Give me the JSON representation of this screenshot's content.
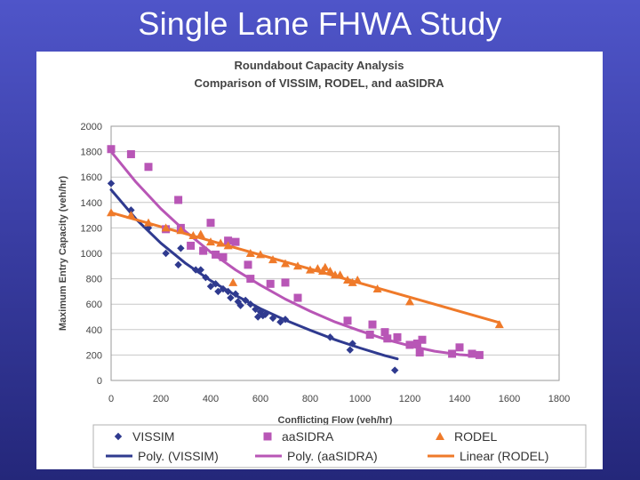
{
  "slide": {
    "title": "Single Lane FHWA Study"
  },
  "chart_data": {
    "type": "scatter",
    "title": "Roundabout Capacity Analysis",
    "subtitle": "Comparison of VISSIM, RODEL, and aaSIDRA",
    "xlabel": "Conflicting Flow (veh/hr)",
    "ylabel": "Maximum Entry Capacity (veh/hr)",
    "xlim": [
      0,
      1800
    ],
    "ylim": [
      0,
      2000
    ],
    "xticks": [
      0,
      200,
      400,
      600,
      800,
      1000,
      1200,
      1400,
      1600,
      1800
    ],
    "yticks": [
      0,
      200,
      400,
      600,
      800,
      1000,
      1200,
      1400,
      1600,
      1800,
      2000
    ],
    "grid": true,
    "legend_position": "bottom",
    "colors": {
      "vissim": "#2f3a8f",
      "aasidra": "#b856b6",
      "rodel": "#ef7a2a"
    },
    "series": [
      {
        "name": "VISSIM",
        "marker": "diamond",
        "color": "#2f3a8f",
        "points": [
          [
            0,
            1550
          ],
          [
            80,
            1340
          ],
          [
            150,
            1200
          ],
          [
            220,
            1000
          ],
          [
            270,
            910
          ],
          [
            280,
            1040
          ],
          [
            340,
            870
          ],
          [
            360,
            870
          ],
          [
            380,
            810
          ],
          [
            400,
            740
          ],
          [
            420,
            760
          ],
          [
            430,
            700
          ],
          [
            450,
            720
          ],
          [
            470,
            700
          ],
          [
            480,
            650
          ],
          [
            500,
            680
          ],
          [
            510,
            620
          ],
          [
            520,
            590
          ],
          [
            540,
            630
          ],
          [
            560,
            600
          ],
          [
            580,
            560
          ],
          [
            590,
            500
          ],
          [
            600,
            540
          ],
          [
            610,
            510
          ],
          [
            620,
            520
          ],
          [
            650,
            490
          ],
          [
            680,
            460
          ],
          [
            700,
            480
          ],
          [
            880,
            340
          ],
          [
            960,
            240
          ],
          [
            970,
            290
          ],
          [
            1140,
            80
          ]
        ]
      },
      {
        "name": "aaSIDRA",
        "marker": "square",
        "color": "#b856b6",
        "points": [
          [
            0,
            1820
          ],
          [
            80,
            1780
          ],
          [
            150,
            1680
          ],
          [
            220,
            1190
          ],
          [
            270,
            1420
          ],
          [
            280,
            1200
          ],
          [
            320,
            1060
          ],
          [
            370,
            1020
          ],
          [
            400,
            1240
          ],
          [
            420,
            990
          ],
          [
            450,
            970
          ],
          [
            470,
            1100
          ],
          [
            500,
            1090
          ],
          [
            550,
            910
          ],
          [
            560,
            800
          ],
          [
            640,
            760
          ],
          [
            700,
            770
          ],
          [
            750,
            650
          ],
          [
            950,
            470
          ],
          [
            1040,
            360
          ],
          [
            1050,
            440
          ],
          [
            1100,
            380
          ],
          [
            1110,
            330
          ],
          [
            1150,
            340
          ],
          [
            1200,
            280
          ],
          [
            1230,
            290
          ],
          [
            1240,
            220
          ],
          [
            1250,
            320
          ],
          [
            1370,
            210
          ],
          [
            1400,
            260
          ],
          [
            1450,
            210
          ],
          [
            1480,
            200
          ]
        ]
      },
      {
        "name": "RODEL",
        "marker": "triangle",
        "color": "#ef7a2a",
        "points": [
          [
            0,
            1320
          ],
          [
            80,
            1300
          ],
          [
            150,
            1240
          ],
          [
            220,
            1200
          ],
          [
            280,
            1180
          ],
          [
            330,
            1140
          ],
          [
            360,
            1150
          ],
          [
            400,
            1090
          ],
          [
            440,
            1080
          ],
          [
            470,
            1060
          ],
          [
            490,
            770
          ],
          [
            560,
            1000
          ],
          [
            600,
            990
          ],
          [
            650,
            950
          ],
          [
            700,
            920
          ],
          [
            750,
            900
          ],
          [
            800,
            870
          ],
          [
            830,
            880
          ],
          [
            850,
            860
          ],
          [
            860,
            890
          ],
          [
            880,
            860
          ],
          [
            900,
            830
          ],
          [
            920,
            830
          ],
          [
            950,
            790
          ],
          [
            970,
            770
          ],
          [
            990,
            790
          ],
          [
            1070,
            720
          ],
          [
            1200,
            620
          ],
          [
            1560,
            440
          ]
        ]
      }
    ],
    "trendlines": [
      {
        "name": "Poly. (VISSIM)",
        "color": "#2f3a8f",
        "points": [
          [
            0,
            1500
          ],
          [
            100,
            1270
          ],
          [
            200,
            1080
          ],
          [
            300,
            920
          ],
          [
            400,
            785
          ],
          [
            500,
            670
          ],
          [
            600,
            565
          ],
          [
            700,
            475
          ],
          [
            800,
            395
          ],
          [
            900,
            320
          ],
          [
            1000,
            255
          ],
          [
            1100,
            195
          ],
          [
            1150,
            170
          ]
        ]
      },
      {
        "name": "Poly. (aaSIDRA)",
        "color": "#b856b6",
        "points": [
          [
            0,
            1800
          ],
          [
            100,
            1560
          ],
          [
            200,
            1350
          ],
          [
            300,
            1170
          ],
          [
            400,
            1010
          ],
          [
            500,
            870
          ],
          [
            600,
            750
          ],
          [
            700,
            640
          ],
          [
            800,
            545
          ],
          [
            900,
            460
          ],
          [
            1000,
            390
          ],
          [
            1100,
            325
          ],
          [
            1200,
            272
          ],
          [
            1300,
            230
          ],
          [
            1400,
            203
          ],
          [
            1480,
            192
          ]
        ]
      },
      {
        "name": "Linear (RODEL)",
        "color": "#ef7a2a",
        "points": [
          [
            0,
            1320
          ],
          [
            1560,
            455
          ]
        ]
      }
    ],
    "legend": [
      {
        "label": "VISSIM",
        "kind": "marker",
        "marker": "diamond",
        "color": "#2f3a8f"
      },
      {
        "label": "aaSIDRA",
        "kind": "marker",
        "marker": "square",
        "color": "#b856b6"
      },
      {
        "label": "RODEL",
        "kind": "marker",
        "marker": "triangle",
        "color": "#ef7a2a"
      },
      {
        "label": "Poly. (VISSIM)",
        "kind": "line",
        "color": "#2f3a8f"
      },
      {
        "label": "Poly. (aaSIDRA)",
        "kind": "line",
        "color": "#b856b6"
      },
      {
        "label": "Linear (RODEL)",
        "kind": "line",
        "color": "#ef7a2a"
      }
    ]
  }
}
